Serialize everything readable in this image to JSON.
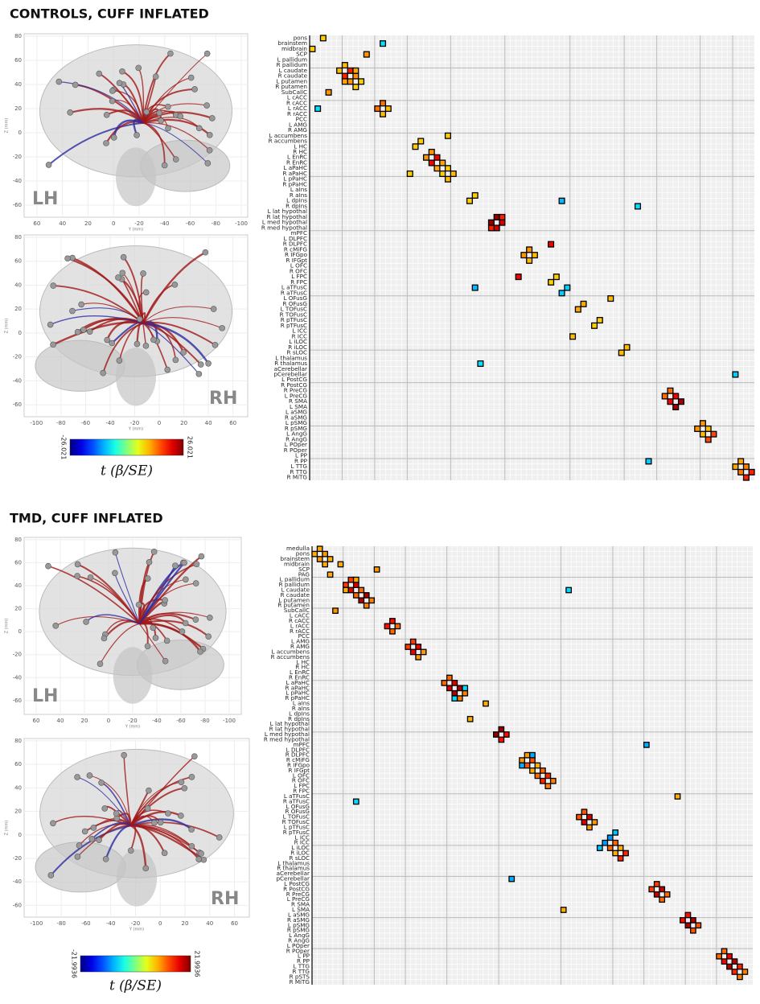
{
  "panels": [
    {
      "title": "CONTROLS, CUFF INFLATED",
      "brains": [
        {
          "hemisphere": "LH",
          "xlabel": "Y (mm)",
          "ylabel": "Z (mm)",
          "xlim": [
            70,
            -105
          ],
          "ylim": [
            -70,
            82
          ],
          "xticks": [
            60,
            40,
            20,
            0,
            -20,
            -40,
            -60,
            -80,
            -100
          ],
          "yticks": [
            80,
            60,
            40,
            20,
            0,
            -20,
            -40,
            -60
          ]
        },
        {
          "hemisphere": "RH",
          "xlabel": "Y (mm)",
          "ylabel": "Z (mm)",
          "xlim": [
            -110,
            72
          ],
          "ylim": [
            -70,
            82
          ],
          "xticks": [
            -100,
            -80,
            -60,
            -40,
            -20,
            0,
            20,
            40,
            60
          ],
          "yticks": [
            80,
            60,
            40,
            20,
            0,
            -20,
            -40,
            -60
          ]
        }
      ],
      "colorbar": {
        "min": -26.021,
        "max": 26.021,
        "label": "t (β/SE)"
      },
      "matrix": {
        "regions": [
          "pons",
          "brainstem",
          "midbrain",
          "SCP",
          "L pallidum",
          "R pallidum",
          "L caudate",
          "R caudate",
          "L putamen",
          "R putamen",
          "SubCallC",
          "L cACC",
          "R cACC",
          "L rACC",
          "R rACC",
          "PCC",
          "L AMG",
          "R AMG",
          "L accumbens",
          "R accumbens",
          "L HC",
          "R HC",
          "L EnRC",
          "R EnRC",
          "L aPaHC",
          "R aPaHC",
          "L pPaHC",
          "R pPaHC",
          "L aIns",
          "R aIns",
          "L dpIns",
          "R dpIns",
          "L lat hypothal",
          "R lat hypothal",
          "L med hypothal",
          "R med hypothal",
          "mPFC",
          "L DLPFC",
          "R DLPFC",
          "R cMiFG",
          "R IFGpo",
          "R IFGpt",
          "L OFC",
          "R OFC",
          "L FPC",
          "R FPC",
          "L aTFusC",
          "R aTFusC",
          "L OFusG",
          "R OFusG",
          "L TOFusC",
          "R TOFusC",
          "R pTFusC",
          "R pTFusC",
          "L ICC",
          "R ICC",
          "L iLOC",
          "R iLOC",
          "R sLOC",
          "L thalamus",
          "R thalamus",
          "aCerebellar",
          "pCerebellar",
          "L PostCG",
          "R PostCG",
          "R PreCG",
          "L PreCG",
          "R SMA",
          "L SMA",
          "L aSMG",
          "R aSMG",
          "L pSMG",
          "R pSMG",
          "L AngG",
          "R AngG",
          "L POper",
          "R POper",
          "L PP",
          "R PP",
          "L TTG",
          "R TTG",
          "R MiTG"
        ],
        "cells": [
          [
            6,
            5,
            10
          ],
          [
            7,
            6,
            18
          ],
          [
            8,
            7,
            12
          ],
          [
            9,
            8,
            9
          ],
          [
            6,
            8,
            11
          ],
          [
            13,
            12,
            14
          ],
          [
            14,
            13,
            10
          ],
          [
            20,
            19,
            9
          ],
          [
            22,
            21,
            12
          ],
          [
            23,
            22,
            20
          ],
          [
            24,
            23,
            11
          ],
          [
            25,
            24,
            9
          ],
          [
            26,
            25,
            10
          ],
          [
            34,
            33,
            25
          ],
          [
            35,
            34,
            22
          ],
          [
            35,
            33,
            18
          ],
          [
            40,
            39,
            12
          ],
          [
            41,
            40,
            10
          ],
          [
            45,
            44,
            9
          ],
          [
            44,
            38,
            20
          ],
          [
            50,
            49,
            11
          ],
          [
            53,
            52,
            9
          ],
          [
            58,
            57,
            10
          ],
          [
            66,
            65,
            14
          ],
          [
            67,
            66,
            20
          ],
          [
            68,
            67,
            24
          ],
          [
            72,
            71,
            12
          ],
          [
            73,
            72,
            10
          ],
          [
            74,
            73,
            16
          ],
          [
            79,
            78,
            11
          ],
          [
            80,
            79,
            13
          ],
          [
            81,
            80,
            18
          ],
          [
            2,
            0,
            9
          ],
          [
            30,
            29,
            9
          ],
          [
            10,
            3,
            12
          ],
          [
            25,
            18,
            9
          ],
          [
            55,
            48,
            10
          ],
          [
            13,
            1,
            -8
          ],
          [
            47,
            46,
            -9
          ],
          [
            46,
            30,
            -10
          ],
          [
            60,
            31,
            -8
          ],
          [
            78,
            62,
            -9
          ]
        ]
      }
    },
    {
      "title": "TMD, CUFF INFLATED",
      "brains": [
        {
          "hemisphere": "LH",
          "xlabel": "Y (mm)",
          "ylabel": "Z (mm)",
          "xlim": [
            70,
            -110
          ],
          "ylim": [
            -72,
            82
          ],
          "xticks": [
            60,
            40,
            20,
            0,
            -20,
            -40,
            -60,
            -80,
            -100
          ],
          "yticks": [
            80,
            60,
            40,
            20,
            0,
            -20,
            -40,
            -60
          ]
        },
        {
          "hemisphere": "RH",
          "xlabel": "Y (mm)",
          "ylabel": "Z (mm)",
          "xlim": [
            -110,
            72
          ],
          "ylim": [
            -70,
            82
          ],
          "xticks": [
            -100,
            -80,
            -60,
            -40,
            -20,
            0,
            20,
            40,
            60
          ],
          "yticks": [
            80,
            60,
            40,
            20,
            0,
            -20,
            -40,
            -60
          ]
        }
      ],
      "colorbar": {
        "min": -21.9936,
        "max": 21.9936,
        "label": "t (β/SE)"
      },
      "matrix": {
        "regions": [
          "medulla",
          "pons",
          "brainstem",
          "midbrain",
          "SCP",
          "PAG",
          "L pallidum",
          "R pallidum",
          "L caudate",
          "R caudate",
          "L putamen",
          "R putamen",
          "SubCallC",
          "L cACC",
          "R cACC",
          "L rACC",
          "R rACC",
          "PCC",
          "L AMG",
          "R AMG",
          "L accumbens",
          "R accumbens",
          "L HC",
          "R HC",
          "L EnRC",
          "R EnRC",
          "L aPaHC",
          "R aPaHC",
          "L pPaHC",
          "R pPaHC",
          "L aIns",
          "R aIns",
          "L dpIns",
          "R dpIns",
          "L lat hypothal",
          "R lat hypothal",
          "L med hypothal",
          "R med hypothal",
          "mPFC",
          "L DLPFC",
          "R DLPFC",
          "R cMiFG",
          "R IFGpo",
          "R IFGpt",
          "L OFC",
          "R OFC",
          "L FPC",
          "R FPC",
          "L aTFusC",
          "R aTFusC",
          "L OFusG",
          "R OFusG",
          "L TOFusC",
          "R TOFusC",
          "L pTFusC",
          "R pTFusC",
          "L ICC",
          "R ICC",
          "L iLOC",
          "R iLOC",
          "R sLOC",
          "L thalamus",
          "R thalamus",
          "aCerebellar",
          "pCerebellar",
          "L PostCG",
          "R PostCG",
          "R PreCG",
          "L PreCG",
          "R SMA",
          "L SMA",
          "L aSMG",
          "R aSMG",
          "L pSMG",
          "R pSMG",
          "L AngG",
          "R AngG",
          "L POper",
          "R POper",
          "L PP",
          "R PP",
          "L TTG",
          "R TTG",
          "R pSTS",
          "R MiTG"
        ],
        "cells": [
          [
            1,
            0,
            9
          ],
          [
            2,
            1,
            10
          ],
          [
            3,
            2,
            9
          ],
          [
            7,
            6,
            14
          ],
          [
            8,
            7,
            18
          ],
          [
            9,
            8,
            12
          ],
          [
            10,
            9,
            20
          ],
          [
            11,
            10,
            11
          ],
          [
            8,
            6,
            9
          ],
          [
            15,
            14,
            16
          ],
          [
            16,
            15,
            12
          ],
          [
            19,
            18,
            14
          ],
          [
            20,
            19,
            17
          ],
          [
            21,
            20,
            10
          ],
          [
            26,
            25,
            12
          ],
          [
            27,
            26,
            18
          ],
          [
            28,
            27,
            20
          ],
          [
            29,
            28,
            11
          ],
          [
            36,
            35,
            21
          ],
          [
            37,
            36,
            16
          ],
          [
            41,
            40,
            10
          ],
          [
            42,
            41,
            13
          ],
          [
            43,
            42,
            9
          ],
          [
            44,
            43,
            12
          ],
          [
            45,
            44,
            15
          ],
          [
            46,
            45,
            11
          ],
          [
            52,
            51,
            13
          ],
          [
            53,
            52,
            18
          ],
          [
            54,
            53,
            10
          ],
          [
            58,
            57,
            12
          ],
          [
            59,
            58,
            9
          ],
          [
            60,
            59,
            15
          ],
          [
            66,
            65,
            14
          ],
          [
            67,
            66,
            19
          ],
          [
            68,
            67,
            12
          ],
          [
            72,
            71,
            16
          ],
          [
            73,
            72,
            20
          ],
          [
            74,
            73,
            13
          ],
          [
            79,
            78,
            12
          ],
          [
            80,
            79,
            17
          ],
          [
            81,
            80,
            20
          ],
          [
            82,
            81,
            15
          ],
          [
            83,
            82,
            11
          ],
          [
            5,
            3,
            9
          ],
          [
            12,
            4,
            10
          ],
          [
            33,
            30,
            9
          ],
          [
            49,
            8,
            -7
          ],
          [
            42,
            40,
            -9
          ],
          [
            57,
            56,
            -10
          ],
          [
            58,
            55,
            -8
          ],
          [
            29,
            27,
            -7
          ],
          [
            64,
            38,
            -9
          ],
          [
            70,
            48,
            9
          ]
        ]
      }
    }
  ]
}
